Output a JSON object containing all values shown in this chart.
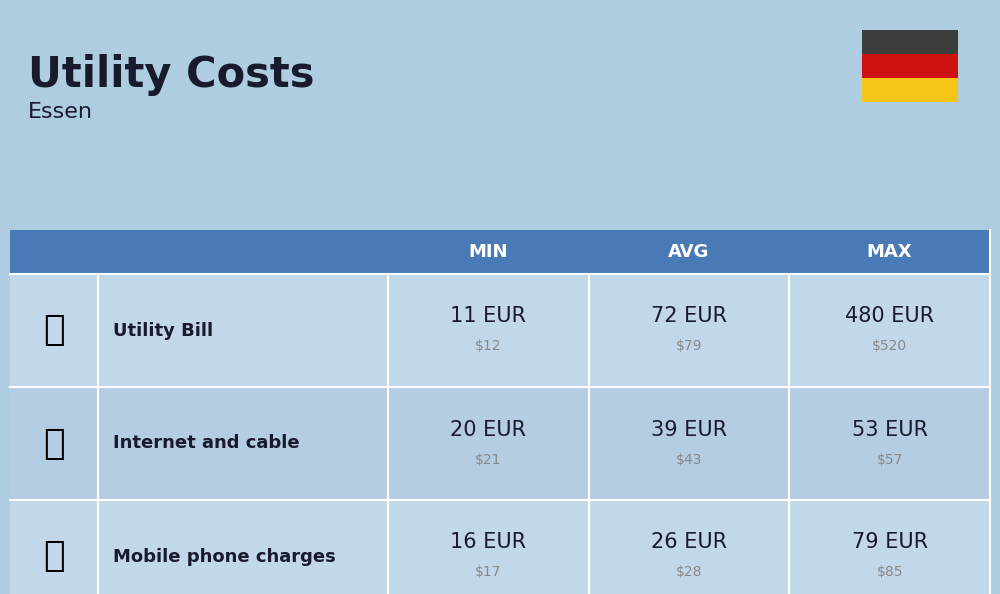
{
  "title": "Utility Costs",
  "subtitle": "Essen",
  "background_color": "#aecde0",
  "header_bg_color": "#4a7ab5",
  "header_text_color": "#ffffff",
  "row_bg_color_odd": "#c2d8ea",
  "row_bg_color_even": "#b5cde3",
  "cell_text_color": "#1a1a2e",
  "usd_text_color": "#888888",
  "rows": [
    {
      "label": "Utility Bill",
      "min_eur": "11 EUR",
      "min_usd": "$12",
      "avg_eur": "72 EUR",
      "avg_usd": "$79",
      "max_eur": "480 EUR",
      "max_usd": "$520"
    },
    {
      "label": "Internet and cable",
      "min_eur": "20 EUR",
      "min_usd": "$21",
      "avg_eur": "39 EUR",
      "avg_usd": "$43",
      "max_eur": "53 EUR",
      "max_usd": "$57"
    },
    {
      "label": "Mobile phone charges",
      "min_eur": "16 EUR",
      "min_usd": "$17",
      "avg_eur": "26 EUR",
      "avg_usd": "$28",
      "max_eur": "79 EUR",
      "max_usd": "$85"
    }
  ],
  "flag_colors": [
    "#3d3d3d",
    "#cc1111",
    "#f5c518"
  ],
  "title_fontsize": 30,
  "subtitle_fontsize": 16,
  "header_fontsize": 13,
  "label_fontsize": 13,
  "eur_fontsize": 15,
  "usd_fontsize": 10
}
